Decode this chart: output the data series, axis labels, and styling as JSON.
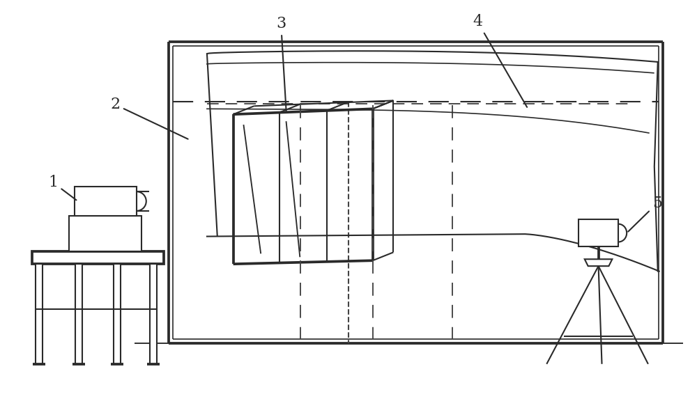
{
  "bg_color": "#ffffff",
  "lc": "#2a2a2a",
  "lw": 1.5,
  "fig_w": 10.0,
  "fig_h": 5.86
}
